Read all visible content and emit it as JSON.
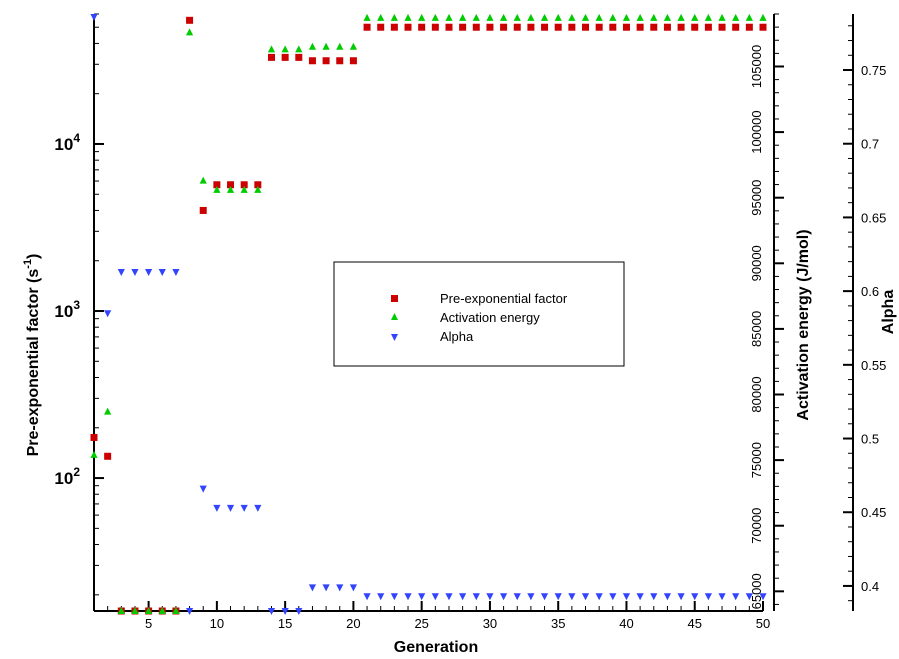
{
  "chart_data": {
    "type": "scatter",
    "title": "",
    "xlabel": "Generation",
    "ylabel_left": "Pre-exponential factor (s⁻¹)",
    "ylabel_left_main": "Pre-exponential factor (s",
    "ylabel_left_sup": "-1",
    "ylabel_left_close": ")",
    "ylabel_mid": "Activation energy (J/mol)",
    "ylabel_right": "Alpha",
    "x_range": [
      1,
      50
    ],
    "x_ticks": [
      5,
      10,
      15,
      20,
      25,
      30,
      35,
      40,
      45,
      50
    ],
    "y_left_scale": "log",
    "y_left_range": [
      16,
      60000
    ],
    "y_left_ticks": [
      {
        "value": 100,
        "base": "10",
        "exp": "2"
      },
      {
        "value": 1000,
        "base": "10",
        "exp": "3"
      },
      {
        "value": 10000,
        "base": "10",
        "exp": "4"
      }
    ],
    "y_mid_range": [
      63500,
      109000
    ],
    "y_mid_ticks": [
      65000,
      70000,
      75000,
      80000,
      85000,
      90000,
      95000,
      100000,
      105000
    ],
    "y_right_range": [
      0.383,
      0.788
    ],
    "y_right_ticks": [
      0.4,
      0.45,
      0.5,
      0.55,
      0.6,
      0.65,
      0.7,
      0.75
    ],
    "grid": false,
    "legend_position": "center-right",
    "series": [
      {
        "name": "Pre-exponential factor",
        "axis": "left",
        "marker": "square",
        "color": "#cc0000",
        "x": [
          1,
          2,
          3,
          4,
          5,
          6,
          7,
          8,
          9,
          10,
          11,
          12,
          13,
          14,
          15,
          16,
          17,
          18,
          19,
          20,
          21,
          22,
          23,
          24,
          25,
          26,
          27,
          28,
          29,
          30,
          31,
          32,
          33,
          34,
          35,
          36,
          37,
          38,
          39,
          40,
          41,
          42,
          43,
          44,
          45,
          46,
          47,
          48,
          49,
          50
        ],
        "y": [
          175,
          135,
          16,
          16,
          16,
          16,
          16,
          55000,
          4000,
          5700,
          5700,
          5700,
          5700,
          33000,
          33000,
          33000,
          31500,
          31500,
          31500,
          31500,
          50000,
          50000,
          50000,
          50000,
          50000,
          50000,
          50000,
          50000,
          50000,
          50000,
          50000,
          50000,
          50000,
          50000,
          50000,
          50000,
          50000,
          50000,
          50000,
          50000,
          50000,
          50000,
          50000,
          50000,
          50000,
          50000,
          50000,
          50000,
          50000,
          50000
        ]
      },
      {
        "name": "Activation energy",
        "axis": "mid",
        "marker": "triangle-up",
        "color": "#00cc00",
        "x": [
          1,
          2,
          3,
          4,
          5,
          6,
          7,
          8,
          9,
          10,
          11,
          12,
          13,
          14,
          15,
          16,
          17,
          18,
          19,
          20,
          21,
          22,
          23,
          24,
          25,
          26,
          27,
          28,
          29,
          30,
          31,
          32,
          33,
          34,
          35,
          36,
          37,
          38,
          39,
          40,
          41,
          42,
          43,
          44,
          45,
          46,
          47,
          48,
          49,
          50
        ],
        "y": [
          75400,
          78700,
          63500,
          63500,
          63500,
          63500,
          63500,
          107600,
          96300,
          95600,
          95600,
          95600,
          95600,
          106300,
          106300,
          106300,
          106500,
          106500,
          106500,
          106500,
          108700,
          108700,
          108700,
          108700,
          108700,
          108700,
          108700,
          108700,
          108700,
          108700,
          108700,
          108700,
          108700,
          108700,
          108700,
          108700,
          108700,
          108700,
          108700,
          108700,
          108700,
          108700,
          108700,
          108700,
          108700,
          108700,
          108700,
          108700,
          108700,
          108700
        ]
      },
      {
        "name": "Alpha",
        "axis": "right",
        "marker": "triangle-down",
        "color": "#3344ff",
        "x": [
          1,
          2,
          3,
          4,
          5,
          6,
          7,
          8,
          9,
          10,
          11,
          12,
          13,
          14,
          15,
          16,
          17,
          18,
          19,
          20,
          21,
          22,
          23,
          24,
          25,
          26,
          27,
          28,
          29,
          30,
          31,
          32,
          33,
          34,
          35,
          36,
          37,
          38,
          39,
          40,
          41,
          42,
          43,
          44,
          45,
          46,
          47,
          48,
          49,
          50
        ],
        "y": [
          0.786,
          0.585,
          0.613,
          0.613,
          0.613,
          0.613,
          0.613,
          0.383,
          0.466,
          0.453,
          0.453,
          0.453,
          0.453,
          0.383,
          0.383,
          0.383,
          0.399,
          0.399,
          0.399,
          0.399,
          0.393,
          0.393,
          0.393,
          0.393,
          0.393,
          0.393,
          0.393,
          0.393,
          0.393,
          0.393,
          0.393,
          0.393,
          0.393,
          0.393,
          0.393,
          0.393,
          0.393,
          0.393,
          0.393,
          0.393,
          0.393,
          0.393,
          0.393,
          0.393,
          0.393,
          0.393,
          0.393,
          0.393,
          0.393,
          0.393
        ]
      }
    ]
  }
}
